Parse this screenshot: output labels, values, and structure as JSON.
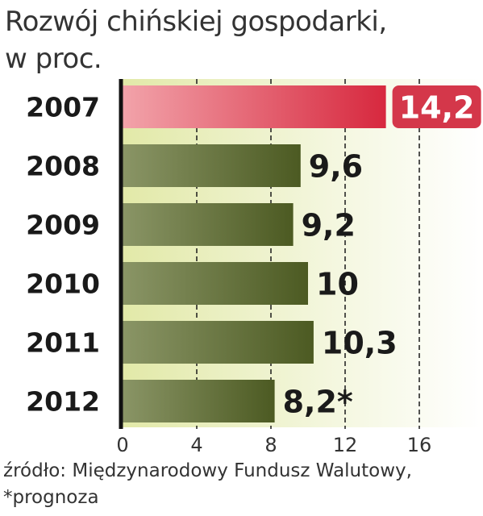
{
  "chart_data": {
    "type": "bar",
    "orientation": "horizontal",
    "title_lines": [
      "Rozwój chińskiej gospodarki,",
      "w proc."
    ],
    "categories": [
      "2007",
      "2008",
      "2009",
      "2010",
      "2011",
      "2012"
    ],
    "values": [
      14.2,
      9.6,
      9.2,
      10,
      10.3,
      8.2
    ],
    "value_labels": [
      "14,2",
      "9,6",
      "9,2",
      "10",
      "10,3",
      "8,2*"
    ],
    "xlim": [
      0,
      16
    ],
    "x_ticks": [
      "0",
      "4",
      "8",
      "12",
      "16"
    ],
    "grid": "vertical dashed",
    "highlight_category": "2007",
    "colors": {
      "highlight": "#d4374a",
      "bar": "#5e6a2e",
      "background": "#e6ecb6"
    }
  },
  "footer": {
    "source": "źródło: Międzynarodowy Fundusz Walutowy,",
    "note": "*prognoza"
  }
}
